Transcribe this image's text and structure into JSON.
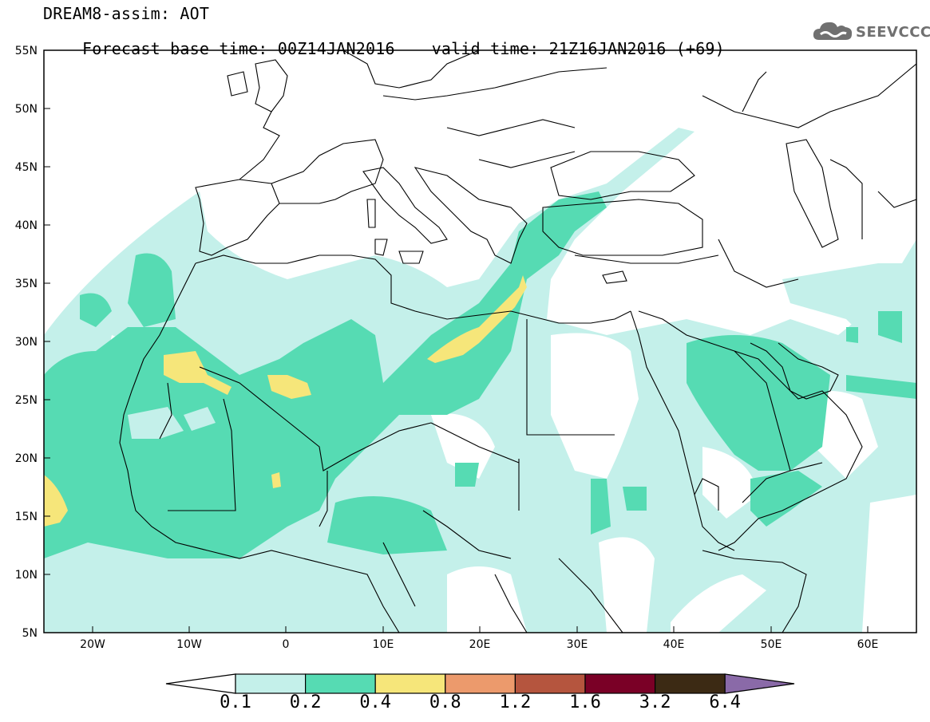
{
  "header": {
    "title": "DREAM8-assim: AOT",
    "base_time": "Forecast base time: 00Z14JAN2016",
    "valid_time": "valid time: 21Z16JAN2016 (+69)"
  },
  "logo": {
    "text": "SEEVCCC",
    "icon": "cloud-icon"
  },
  "map": {
    "lat_labels": [
      "55N",
      "50N",
      "45N",
      "40N",
      "35N",
      "30N",
      "25N",
      "20N",
      "15N",
      "10N",
      "5N"
    ],
    "lon_labels": [
      "20W",
      "10W",
      "0",
      "10E",
      "20E",
      "30E",
      "40E",
      "50E",
      "60E"
    ],
    "lat_range": [
      5,
      55
    ],
    "lon_range": [
      -25,
      65
    ]
  },
  "colorbar": {
    "levels": [
      "0.1",
      "0.2",
      "0.4",
      "0.8",
      "1.2",
      "1.6",
      "3.2",
      "6.4"
    ],
    "colors": [
      "#ffffff",
      "#c4f0ea",
      "#56dbb3",
      "#f6e67a",
      "#ec9a6c",
      "#b5553e",
      "#7a0026",
      "#3c2a14",
      "#8a6aa8"
    ]
  }
}
